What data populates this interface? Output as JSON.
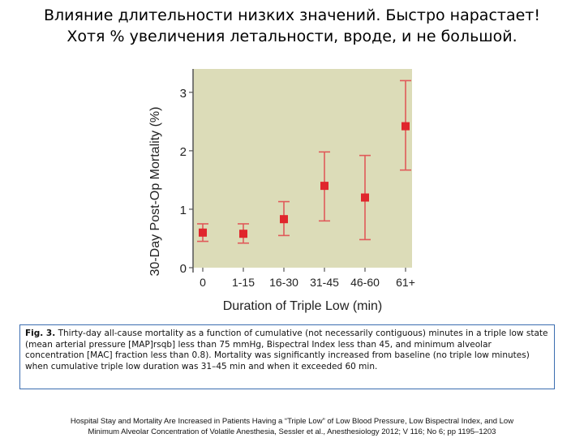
{
  "slide": {
    "title_line1": "Влияние длительности низких значений. Быстро нарастает!",
    "title_line2": "Хотя % увеличения летальности, вроде, и не большой."
  },
  "caption": {
    "label": "Fig. 3.",
    "text": "Thirty-day all-cause mortality as a function of cumulative (not necessarily contiguous) minutes in a triple low state (mean arterial pressure [MAP]rsqb] less than 75 mmHg, Bispectral Index less than 45, and minimum alveolar concentration [MAC] fraction less than 0.8). Mortality was significantly increased from baseline (no triple low minutes) when cumulative triple low duration was 31–45 min and when it exceeded 60 min."
  },
  "citation": {
    "line1": "Hospital Stay and Mortality Are Increased in Patients Having a “Triple Low” of Low Blood Pressure, Low Bispectral Index, and Low",
    "line2": "Minimum Alveolar Concentration of Volatile Anesthesia, Sessler et al., Anesthesiology 2012; V 116; No 6; pp 1195–1203"
  },
  "colors": {
    "plot_background": "#dcdcb8",
    "marker": "#e0262c",
    "error_bar": "#e05a5a",
    "axis": "#555555"
  },
  "chart_data": {
    "type": "scatter",
    "title": "",
    "xlabel": "Duration of Triple Low (min)",
    "ylabel": "30-Day Post-Op Mortality (%)",
    "categories": [
      "0",
      "1-15",
      "16-30",
      "31-45",
      "46-60",
      "61+"
    ],
    "values": [
      0.6,
      0.58,
      0.83,
      1.4,
      1.2,
      2.42
    ],
    "error_low": [
      0.45,
      0.42,
      0.55,
      0.8,
      0.48,
      1.67
    ],
    "error_high": [
      0.75,
      0.75,
      1.13,
      1.98,
      1.92,
      3.2
    ],
    "ylim": [
      0,
      3.4
    ],
    "yticks": [
      0,
      1,
      2,
      3
    ],
    "grid": false,
    "legend": "none"
  }
}
